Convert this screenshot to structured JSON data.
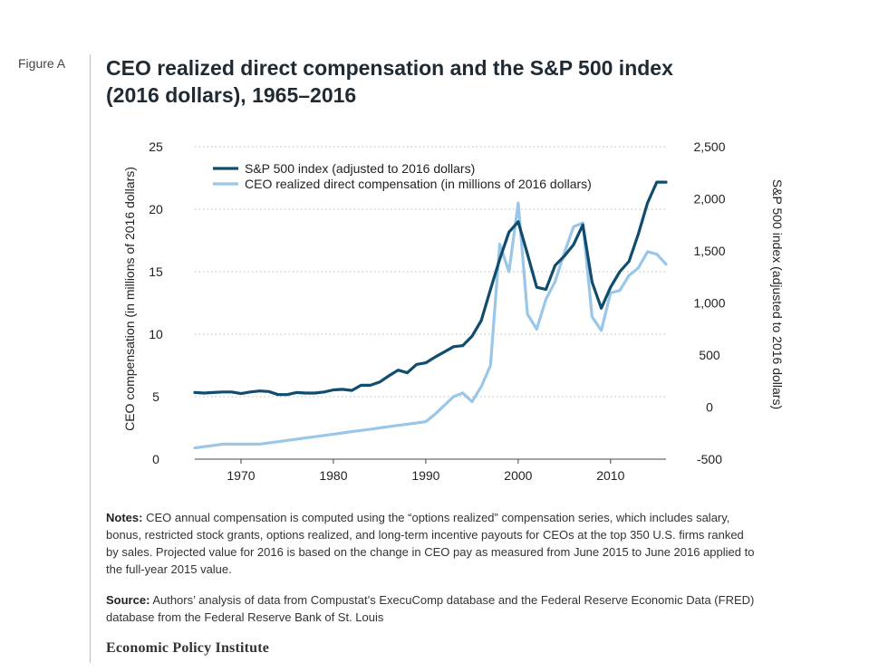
{
  "figure": {
    "label": "Figure A",
    "title_line1": "CEO realized direct compensation and the S&P 500 index",
    "title_line2": "(2016 dollars), 1965–2016"
  },
  "notes": {
    "label": "Notes:",
    "text": "CEO annual compensation is computed using the “options realized” compensation series, which includes salary, bonus, restricted stock grants, options realized, and long-term incentive payouts for CEOs at the top 350 U.S. firms ranked by sales. Projected value for 2016 is based on the change in CEO pay as measured from June 2015 to June 2016 applied to the full-year 2015 value."
  },
  "source": {
    "label": "Source:",
    "text": "Authors’ analysis of data from Compustat’s ExecuComp database and the Federal Reserve Economic Data (FRED) database from the Federal Reserve Bank of St. Louis"
  },
  "publisher": "Economic Policy Institute",
  "colors": {
    "sp500": "#0f4c6e",
    "ceo": "#9ac6e8",
    "grid": "#c8c8c8",
    "axis": "#444444"
  },
  "chart_data": {
    "type": "line",
    "ylabel": "CEO compensation (in millions of 2016 dollars)",
    "y2label": "S&P 500 index (adjusted to 2016 dollars)",
    "xlim": [
      1965,
      2016
    ],
    "ylim": [
      0,
      25
    ],
    "y2lim": [
      -500,
      2500
    ],
    "xticks": [
      "1970",
      "1980",
      "1990",
      "2000",
      "2010"
    ],
    "yticks": [
      "0",
      "5",
      "10",
      "15",
      "20",
      "25"
    ],
    "y2ticks": [
      "-500",
      "0",
      "500",
      "1,000",
      "1,500",
      "2,000",
      "2,500"
    ],
    "legend_position": "top-left",
    "grid": "horizontal-dotted",
    "x": [
      1965,
      1966,
      1967,
      1968,
      1969,
      1970,
      1971,
      1972,
      1973,
      1974,
      1975,
      1976,
      1977,
      1978,
      1979,
      1980,
      1981,
      1982,
      1983,
      1984,
      1985,
      1986,
      1987,
      1988,
      1989,
      1990,
      1991,
      1992,
      1993,
      1994,
      1995,
      1996,
      1997,
      1998,
      1999,
      2000,
      2001,
      2002,
      2003,
      2004,
      2005,
      2006,
      2007,
      2008,
      2009,
      2010,
      2011,
      2012,
      2013,
      2014,
      2015,
      2016
    ],
    "series": [
      {
        "name": "S&P 500 index (adjusted to 2016 dollars)",
        "axis": "right",
        "values": [
          140,
          135,
          140,
          145,
          145,
          130,
          145,
          155,
          150,
          120,
          120,
          140,
          135,
          135,
          145,
          165,
          170,
          160,
          210,
          210,
          240,
          300,
          355,
          330,
          410,
          425,
          480,
          530,
          580,
          590,
          680,
          830,
          1130,
          1420,
          1680,
          1780,
          1470,
          1150,
          1130,
          1360,
          1450,
          1560,
          1750,
          1200,
          950,
          1150,
          1300,
          1400,
          1660,
          1960,
          2160,
          2160
        ]
      },
      {
        "name": "CEO realized direct compensation (in millions of 2016 dollars)",
        "axis": "left",
        "values": [
          0.9,
          1.0,
          1.1,
          1.2,
          1.2,
          1.2,
          1.2,
          1.2,
          1.3,
          1.4,
          1.5,
          1.6,
          1.7,
          1.8,
          1.9,
          2.0,
          2.1,
          2.2,
          2.3,
          2.4,
          2.5,
          2.6,
          2.7,
          2.8,
          2.9,
          3.0,
          3.6,
          4.3,
          5.0,
          5.3,
          4.6,
          5.8,
          7.5,
          17.2,
          15.0,
          20.5,
          11.6,
          10.4,
          12.8,
          14.2,
          16.5,
          18.6,
          18.9,
          11.4,
          10.3,
          13.3,
          13.5,
          14.7,
          15.3,
          16.6,
          16.4,
          15.6
        ]
      }
    ]
  }
}
